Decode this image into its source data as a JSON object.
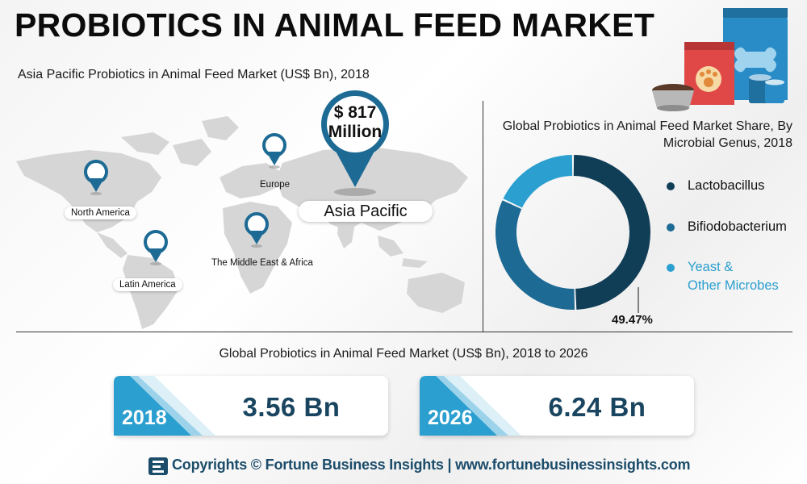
{
  "title": "PROBIOTICS IN ANIMAL FEED MARKET",
  "map": {
    "title": "Asia Pacific Probiotics in Animal Feed Market (US$ Bn), 2018",
    "highlight_value": "$ 817",
    "highlight_unit": "Million",
    "regions": {
      "north_america": "North America",
      "europe": "Europe",
      "asia_pacific": "Asia Pacific",
      "middle_east_africa": "The Middle East & Africa",
      "latin_america": "Latin America"
    }
  },
  "chart_data": {
    "type": "pie",
    "title": "Global Probiotics in Animal Feed Market Share, By Microbial Genus, 2018",
    "segments": [
      {
        "label": "Lactobacillus",
        "value": 49.47,
        "color": "#113e57"
      },
      {
        "label": "Bifiodobacterium",
        "value": 32.5,
        "color": "#1d6a94"
      },
      {
        "label": "Yeast & Other Microbes",
        "value": 18.03,
        "color": "#2b9fcf"
      }
    ],
    "legend": [
      "Lactobacillus",
      "Bifiodobacterium",
      "Yeast &",
      "Other Microbes"
    ],
    "annotation": "49.47%",
    "legend_position": "right"
  },
  "growth": {
    "title": "Global Probiotics in Animal Feed Market (US$ Bn), 2018 to 2026",
    "cards": [
      {
        "year": "2018",
        "value": "3.56 Bn"
      },
      {
        "year": "2026",
        "value": "6.24 Bn"
      }
    ]
  },
  "colors": {
    "dark": "#113e57",
    "mid": "#1d6a94",
    "light": "#2b9fcf",
    "map": "#d4d4d4"
  },
  "footer": "Copyrights © Fortune Business Insights | www.fortunebusinessinsights.com"
}
